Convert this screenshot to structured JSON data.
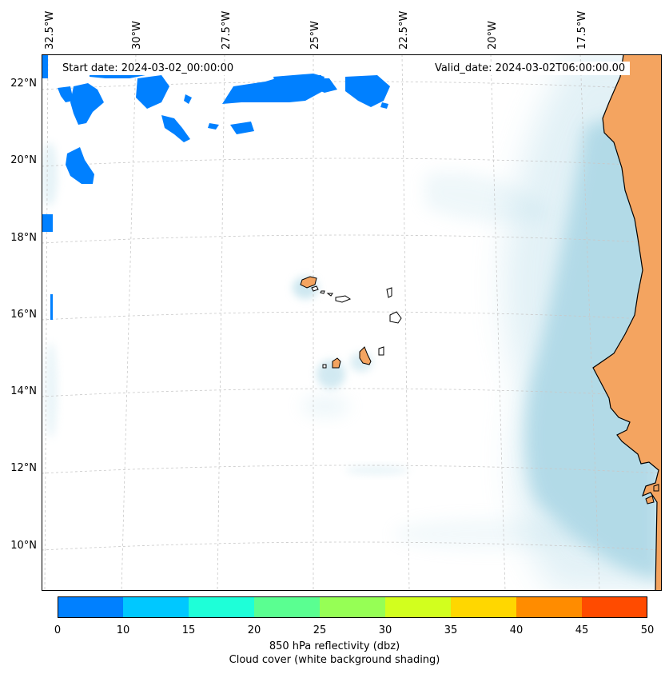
{
  "map": {
    "lon_labels": [
      "32.5°W",
      "30°W",
      "27.5°W",
      "25°W",
      "22.5°W",
      "20°W",
      "17.5°W"
    ],
    "lat_labels": [
      "22°N",
      "20°N",
      "18°N",
      "16°N",
      "14°N",
      "12°N",
      "10°N"
    ],
    "start_date": "Start date: 2024-03-02_00:00:00",
    "valid_date": "Valid_date: 2024-03-02T06:00:00.00",
    "land_color": "#f4a460",
    "cloud_color": "#add8e6",
    "echo_color": "#0080ff"
  },
  "colorbar": {
    "ticks": [
      "0",
      "10",
      "15",
      "20",
      "25",
      "30",
      "35",
      "40",
      "45",
      "50"
    ],
    "colors": [
      "#0080ff",
      "#00c8ff",
      "#1effd8",
      "#5aff91",
      "#96ff55",
      "#d2ff1e",
      "#ffd700",
      "#ff8c00",
      "#ff4b00"
    ],
    "label_line1": "850 hPa reflectivity (dbz)",
    "label_line2": "Cloud cover (white background shading)"
  }
}
